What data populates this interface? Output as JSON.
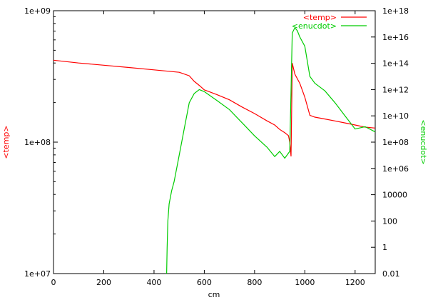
{
  "chart_data": {
    "type": "line",
    "xlabel": "cm",
    "ylabel_left": "<temp>",
    "ylabel_right": "<enucdot>",
    "xlim": [
      0,
      1280
    ],
    "ylim_left": [
      10000000,
      1000000000
    ],
    "ylim_right": [
      0.01,
      1e+18
    ],
    "y_scale_left": "log",
    "y_scale_right": "log",
    "grid": false,
    "legend_position": "top-right",
    "x_ticks": [
      "0",
      "200",
      "400",
      "600",
      "800",
      "1000",
      "1200"
    ],
    "y_ticks_left": [
      "1e+07",
      "1e+08",
      "1e+09"
    ],
    "y_ticks_right": [
      "0.01",
      "1",
      "100",
      "10000",
      "1e+06",
      "1e+08",
      "1e+10",
      "1e+12",
      "1e+14",
      "1e+16",
      "1e+18"
    ],
    "series": [
      {
        "name": "<temp>",
        "axis": "left",
        "color": "#ff0000",
        "points": [
          [
            0,
            420000000
          ],
          [
            100,
            400000000
          ],
          [
            200,
            385000000
          ],
          [
            300,
            370000000
          ],
          [
            400,
            355000000
          ],
          [
            500,
            340000000
          ],
          [
            540,
            320000000
          ],
          [
            560,
            290000000
          ],
          [
            580,
            270000000
          ],
          [
            600,
            250000000
          ],
          [
            650,
            230000000
          ],
          [
            700,
            210000000
          ],
          [
            750,
            185000000
          ],
          [
            800,
            165000000
          ],
          [
            850,
            145000000
          ],
          [
            880,
            135000000
          ],
          [
            900,
            125000000
          ],
          [
            920,
            118000000
          ],
          [
            935,
            112000000
          ],
          [
            940,
            100000000
          ],
          [
            945,
            78000000
          ],
          [
            950,
            400000000
          ],
          [
            960,
            330000000
          ],
          [
            980,
            280000000
          ],
          [
            1000,
            220000000
          ],
          [
            1020,
            160000000
          ],
          [
            1040,
            155000000
          ],
          [
            1080,
            150000000
          ],
          [
            1120,
            145000000
          ],
          [
            1160,
            140000000
          ],
          [
            1200,
            135000000
          ],
          [
            1240,
            130000000
          ],
          [
            1280,
            128000000
          ]
        ]
      },
      {
        "name": "<enucdot>",
        "axis": "right",
        "color": "#00cc00",
        "points": [
          [
            450,
            0.01
          ],
          [
            452,
            1
          ],
          [
            455,
            100
          ],
          [
            460,
            2000
          ],
          [
            470,
            20000
          ],
          [
            480,
            100000
          ],
          [
            500,
            10000000
          ],
          [
            520,
            1000000000
          ],
          [
            540,
            100000000000
          ],
          [
            560,
            500000000000
          ],
          [
            580,
            1000000000000
          ],
          [
            600,
            700000000000
          ],
          [
            650,
            150000000000
          ],
          [
            700,
            30000000000
          ],
          [
            750,
            3000000000
          ],
          [
            800,
            300000000
          ],
          [
            850,
            40000000
          ],
          [
            880,
            8000000
          ],
          [
            900,
            20000000
          ],
          [
            920,
            6000000
          ],
          [
            940,
            20000000
          ],
          [
            950,
            20000000000000000
          ],
          [
            960,
            50000000000000000
          ],
          [
            970,
            30000000000000000
          ],
          [
            980,
            10000000000000000
          ],
          [
            1000,
            2000000000000000
          ],
          [
            1020,
            10000000000000
          ],
          [
            1040,
            3000000000000
          ],
          [
            1080,
            800000000000
          ],
          [
            1120,
            100000000000
          ],
          [
            1160,
            10000000000
          ],
          [
            1200,
            1000000000
          ],
          [
            1240,
            1500000000
          ],
          [
            1280,
            600000000
          ]
        ]
      }
    ]
  }
}
